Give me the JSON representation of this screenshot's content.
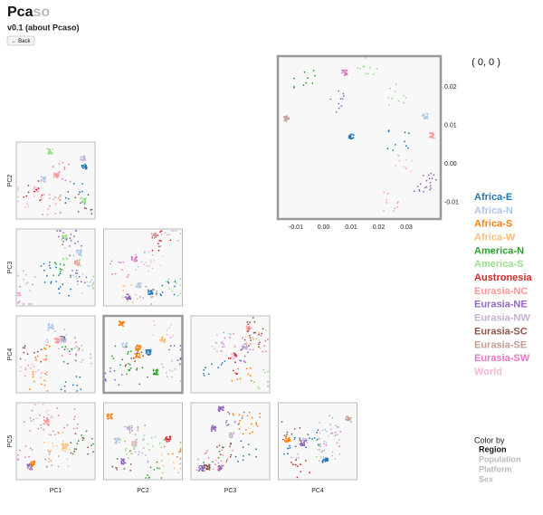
{
  "header": {
    "title_main": "Pca",
    "title_faded": "so",
    "version": "v0.1 (about Pcaso)",
    "back_button": "← Back"
  },
  "main_plot": {
    "label": "( 0, 0 )",
    "x_ticks": [
      "-0.01",
      "0.00",
      "0.01",
      "0.02",
      "0.03"
    ],
    "y_ticks": [
      "0.02",
      "0.01",
      "0.00",
      "-0.01"
    ]
  },
  "matrix": {
    "row_labels": [
      "PC2",
      "PC3",
      "PC4",
      "PC5"
    ],
    "col_labels": [
      "PC1",
      "PC2",
      "PC3",
      "PC4"
    ]
  },
  "legend": {
    "items": [
      {
        "label": "Africa-E",
        "color": "#1f77b4"
      },
      {
        "label": "Africa-N",
        "color": "#aec7e8"
      },
      {
        "label": "Africa-S",
        "color": "#ff7f0e"
      },
      {
        "label": "Africa-W",
        "color": "#ffbb78"
      },
      {
        "label": "America-N",
        "color": "#2ca02c"
      },
      {
        "label": "America-S",
        "color": "#98df8a"
      },
      {
        "label": "Austronesia",
        "color": "#d62728"
      },
      {
        "label": "Eurasia-NC",
        "color": "#ff9896"
      },
      {
        "label": "Eurasia-NE",
        "color": "#9467bd"
      },
      {
        "label": "Eurasia-NW",
        "color": "#c5b0d5"
      },
      {
        "label": "Eurasia-SC",
        "color": "#8c564b"
      },
      {
        "label": "Eurasia-SE",
        "color": "#c49c94"
      },
      {
        "label": "Eurasia-SW",
        "color": "#e377c2"
      },
      {
        "label": "World",
        "color": "#f7b6d2"
      }
    ]
  },
  "color_by": {
    "title": "Color by",
    "options": [
      "Region",
      "Population",
      "Platform",
      "Sex"
    ],
    "selected": "Region"
  }
}
